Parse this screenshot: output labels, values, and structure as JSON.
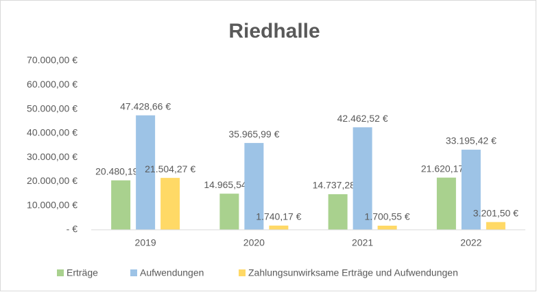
{
  "chart_data": {
    "type": "bar",
    "title": "Riedhalle",
    "categories": [
      "2019",
      "2020",
      "2021",
      "2022"
    ],
    "series": [
      {
        "name": "Erträge",
        "color": "#a9d18e",
        "values": [
          20480.19,
          14965.54,
          14737.28,
          21620.17
        ],
        "value_labels": [
          "20.480,19 €",
          "14.965,54 €",
          "14.737,28 €",
          "21.620,17 €"
        ]
      },
      {
        "name": "Aufwendungen",
        "color": "#9dc3e6",
        "values": [
          47428.66,
          35965.99,
          42462.52,
          33195.42
        ],
        "value_labels": [
          "47.428,66 €",
          "35.965,99 €",
          "42.462,52 €",
          "33.195,42 €"
        ]
      },
      {
        "name": "Zahlungsunwirksame Erträge und Aufwendungen",
        "color": "#ffd966",
        "values": [
          21504.27,
          1740.17,
          1700.55,
          3201.5
        ],
        "value_labels": [
          "21.504,27 €",
          "1.740,17 €",
          "1.700,55 €",
          "3.201,50 €"
        ]
      }
    ],
    "ylim": [
      0,
      70000
    ],
    "yticks": [
      {
        "value": 0,
        "label": "-   €"
      },
      {
        "value": 10000,
        "label": "10.000,00 €"
      },
      {
        "value": 20000,
        "label": "20.000,00 €"
      },
      {
        "value": 30000,
        "label": "30.000,00 €"
      },
      {
        "value": 40000,
        "label": "40.000,00 €"
      },
      {
        "value": 50000,
        "label": "50.000,00 €"
      },
      {
        "value": 60000,
        "label": "60.000,00 €"
      },
      {
        "value": 70000,
        "label": "70.000,00 €"
      }
    ],
    "grid": false,
    "legend": "bottom"
  }
}
